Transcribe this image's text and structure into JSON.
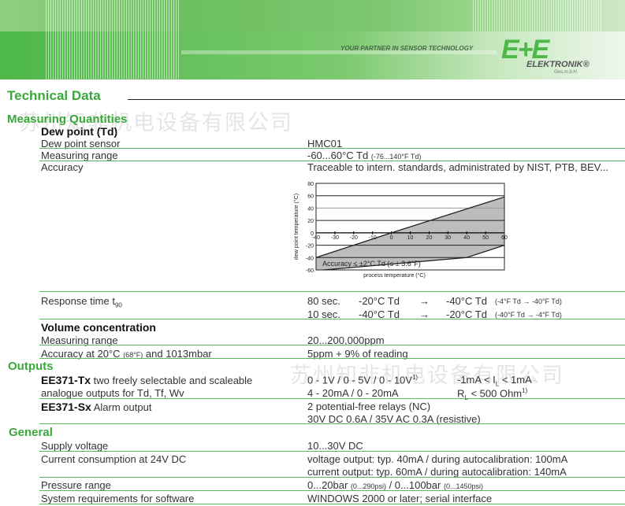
{
  "header": {
    "tagline": "YOUR PARTNER IN SENSOR TECHNOLOGY",
    "logo": "E+E",
    "brand": "ELEKTRONIK®",
    "brand_sub": "Ges.m.b.H."
  },
  "watermark": "苏州知非机电设备有限公司",
  "title": "Technical Data",
  "measuring": {
    "heading": "Measuring Quantities",
    "dew": {
      "heading": "Dew point (Td)",
      "rows": [
        {
          "label": "Dew point sensor",
          "value": "HMC01"
        },
        {
          "label": "Measuring range",
          "value": "-60...60°C Td",
          "value_small": "(-76...140°F Td)"
        },
        {
          "label": "Accuracy",
          "value": "Traceable to intern. standards, administrated by NIST, PTB, BEV..."
        }
      ],
      "response": {
        "label": "Response time t",
        "label_sub": "90",
        "lines": [
          {
            "time": "80 sec.",
            "from": "-20°C Td",
            "to": "-40°C Td",
            "f": "(-4°F Td  →  -40°F Td)"
          },
          {
            "time": "10 sec.",
            "from": "-40°C Td",
            "to": "-20°C Td",
            "f": "(-40°F Td →  -4°F Td)"
          }
        ],
        "arrow": "→"
      }
    },
    "volume": {
      "heading": "Volume concentration",
      "rows": [
        {
          "label": "Measuring range",
          "value": "20...200,000ppm"
        },
        {
          "label_a": "Accuracy at 20°C ",
          "label_small": "(68°F)",
          "label_b": " and 1013mbar",
          "value": "5ppm + 9% of reading"
        }
      ]
    }
  },
  "chart_data": {
    "type": "area",
    "xlabel": "process temperature (°C)",
    "ylabel": "dew point temperature (°C)",
    "xlim": [
      -40,
      60
    ],
    "ylim": [
      -60,
      80
    ],
    "xticks": [
      "-40",
      "-30",
      "-20",
      "-10",
      "0",
      "10",
      "20",
      "30",
      "40",
      "50",
      "60"
    ],
    "yticks": [
      "80",
      "60",
      "40",
      "20",
      "0",
      "-20",
      "-40",
      "-60"
    ],
    "upper_boundary": [
      [
        -40,
        -40
      ],
      [
        0,
        0
      ],
      [
        60,
        58
      ]
    ],
    "lower_boundary": [
      [
        -40,
        -60
      ],
      [
        -36,
        -60
      ],
      [
        40,
        -40
      ],
      [
        60,
        -20
      ]
    ],
    "annotation": "Accuracy ≤ ±2°C Td (≤ ± 3.6°F)",
    "fill": "#bdbdbd",
    "grid": true
  },
  "outputs": {
    "heading": "Outputs",
    "tx": {
      "model": "EE371-Tx",
      "desc1": " two freely selectable and scaleable",
      "desc2": "analogue outputs for Td, Tf, Wv",
      "v1": "0 - 1V / 0 - 5V / 0 - 10V",
      "v1sup": "1)",
      "v1b": "-1mA < I",
      "v1bsub": "L",
      "v1bc": " < 1mA",
      "v2": "4 - 20mA / 0 - 20mA",
      "v2b": "R",
      "v2bsub": "L",
      "v2bc": " < 500 Ohm",
      "v2bsup": "1)"
    },
    "sx": {
      "model": "EE371-Sx",
      "desc": " Alarm output",
      "v1": "2 potential-free relays (NC)",
      "v2": "30V DC 0.6A / 35V AC 0.3A (resistive)"
    }
  },
  "general": {
    "heading": "General",
    "rows": [
      {
        "label": "Supply voltage",
        "value": "10...30V DC"
      },
      {
        "label": "Current consumption at 24V DC",
        "value": "voltage output: typ. 40mA / during autocalibration: 100mA",
        "value2": "current output: typ. 60mA / during autocalibration: 140mA"
      },
      {
        "label": "Pressure range",
        "v_a": "0...20bar ",
        "v_s1": "(0...290psi)",
        "v_b": " / 0...100bar ",
        "v_s2": "(0...1450psi)"
      },
      {
        "label": "System requirements for software",
        "value": "WINDOWS 2000 or later; serial interface"
      }
    ]
  }
}
